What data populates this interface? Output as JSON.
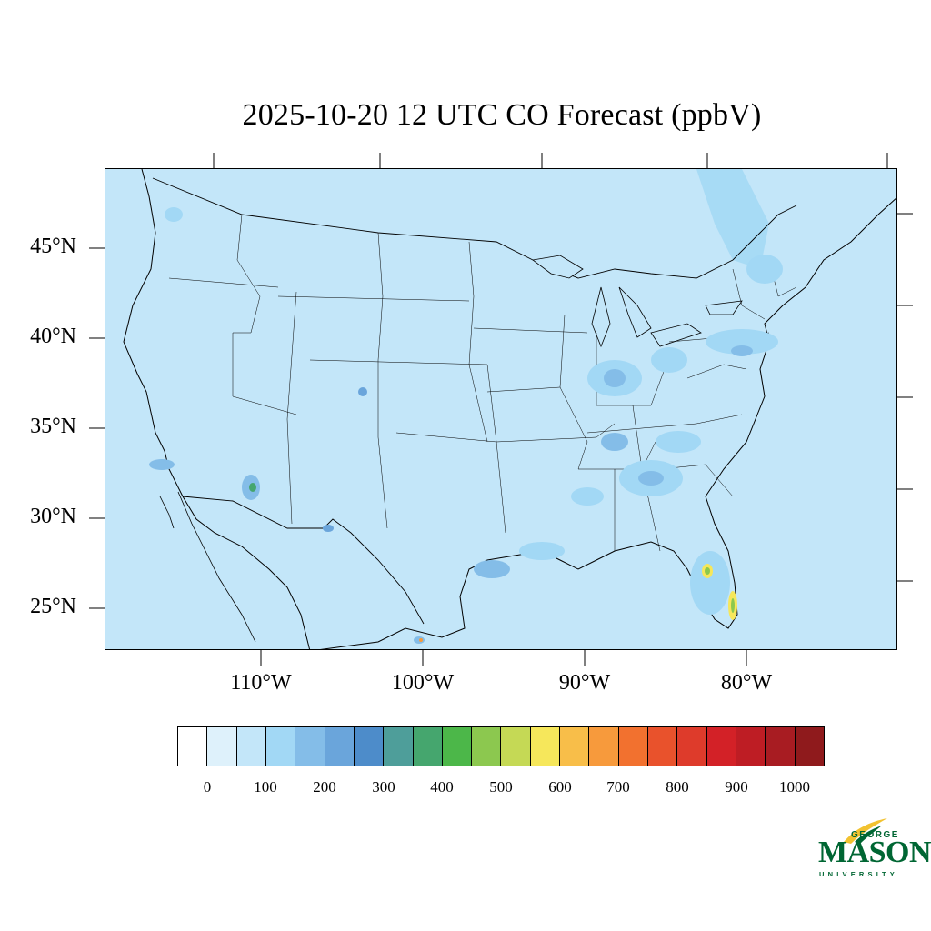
{
  "title": "2025-10-20 12 UTC CO Forecast (ppbV)",
  "map": {
    "background_color": "#c3e6f9",
    "latitude_labels": [
      "45°N",
      "40°N",
      "35°N",
      "30°N",
      "25°N"
    ],
    "longitude_labels": [
      "110°W",
      "100°W",
      "90°W",
      "80°W"
    ]
  },
  "colorbar": {
    "colors": [
      "#ffffff",
      "#def1fb",
      "#c3e6f9",
      "#a2d8f5",
      "#84bde8",
      "#6aa5db",
      "#4d8cca",
      "#4e9e9a",
      "#45a66e",
      "#4cb749",
      "#8cc84f",
      "#c5d955",
      "#f6e75b",
      "#f8be49",
      "#f79a3c",
      "#f2712f",
      "#e9522c",
      "#de3b2b",
      "#d32127",
      "#be1d24",
      "#a81c22",
      "#8f1a1c"
    ],
    "labels": [
      "0",
      "100",
      "200",
      "300",
      "400",
      "500",
      "600",
      "700",
      "800",
      "900",
      "1000"
    ]
  },
  "logo": {
    "line1": "GEORGE",
    "line2": "MASON",
    "line3": "UNIVERSITY",
    "color": "#006633",
    "accent": "#f2c230"
  }
}
